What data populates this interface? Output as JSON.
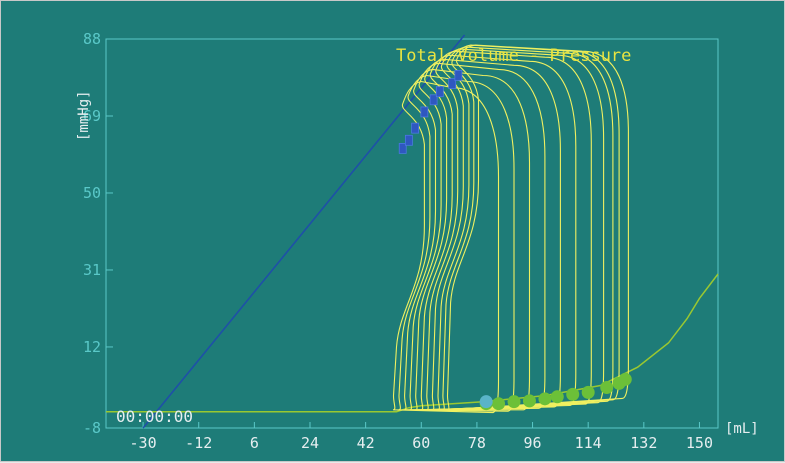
{
  "chart_data": {
    "type": "line",
    "title": "Total Volume - Pressure",
    "xlabel": "[mL]",
    "ylabel": "[mmHg]",
    "timer": "00:00:00",
    "xlim": [
      -42,
      156
    ],
    "ylim": [
      -8,
      88
    ],
    "x_ticks": [
      "-30",
      "-12",
      "6",
      "24",
      "42",
      "60",
      "78",
      "96",
      "114",
      "132",
      "150"
    ],
    "y_ticks": [
      "88",
      "69",
      "50",
      "31",
      "12",
      "-8"
    ],
    "grid": false,
    "colors": {
      "background": "#1e7c78",
      "axis": "#5ac8c8",
      "loops": "#f0f060",
      "baseline": "#9ac830",
      "elastance_line": "#1e50a8",
      "edv_markers": "#6cc038",
      "current_marker": "#5ab4c8",
      "esp_markers": "#2f58c0"
    },
    "esp_line": {
      "points": [
        [
          -30,
          -8
        ],
        [
          74,
          89
        ]
      ]
    },
    "baseline": {
      "points": [
        [
          -42,
          -4
        ],
        [
          52,
          -4
        ],
        [
          56,
          -3
        ],
        [
          60,
          -2.5
        ],
        [
          80,
          -1.5
        ],
        [
          100,
          0
        ],
        [
          118,
          2.5
        ],
        [
          130,
          7
        ],
        [
          140,
          13
        ],
        [
          146,
          19
        ],
        [
          150,
          24
        ],
        [
          156,
          30
        ]
      ]
    },
    "loops": [
      {
        "v_edv": 84,
        "v_esv": 54.0,
        "p_es": 72.0,
        "p_peak": 76.0
      },
      {
        "v_edv": 89,
        "v_esv": 55.8,
        "p_es": 74.0,
        "p_peak": 77.5
      },
      {
        "v_edv": 94,
        "v_esv": 57.6,
        "p_es": 75.5,
        "p_peak": 79.0
      },
      {
        "v_edv": 99,
        "v_esv": 59.4,
        "p_es": 77.0,
        "p_peak": 80.5
      },
      {
        "v_edv": 104,
        "v_esv": 61.2,
        "p_es": 78.5,
        "p_peak": 81.5
      },
      {
        "v_edv": 109,
        "v_esv": 63.0,
        "p_es": 79.5,
        "p_peak": 82.5
      },
      {
        "v_edv": 114,
        "v_esv": 64.8,
        "p_es": 80.5,
        "p_peak": 83.5
      },
      {
        "v_edv": 118,
        "v_esv": 66.6,
        "p_es": 81.5,
        "p_peak": 84.0
      },
      {
        "v_edv": 121,
        "v_esv": 68.4,
        "p_es": 82.0,
        "p_peak": 84.5
      },
      {
        "v_edv": 123,
        "v_esv": 70.0,
        "p_es": 82.5,
        "p_peak": 85.0
      },
      {
        "v_edv": 126,
        "v_esv": 71.5,
        "p_es": 83.0,
        "p_peak": 85.0
      }
    ],
    "edv_markers": [
      [
        81,
        -2
      ],
      [
        85,
        -2
      ],
      [
        90,
        -1.5
      ],
      [
        95,
        -1.3
      ],
      [
        100,
        -0.8
      ],
      [
        104,
        -0.3
      ],
      [
        109,
        0.3
      ],
      [
        114,
        0.8
      ],
      [
        120,
        2
      ],
      [
        124,
        3
      ],
      [
        126,
        4
      ]
    ],
    "current_marker": [
      81,
      -1.5
    ],
    "esp_markers": [
      [
        54,
        61
      ],
      [
        56,
        63
      ],
      [
        58,
        66
      ],
      [
        61,
        70
      ],
      [
        64,
        73
      ],
      [
        66,
        75
      ],
      [
        70,
        77
      ],
      [
        72,
        79
      ]
    ]
  }
}
